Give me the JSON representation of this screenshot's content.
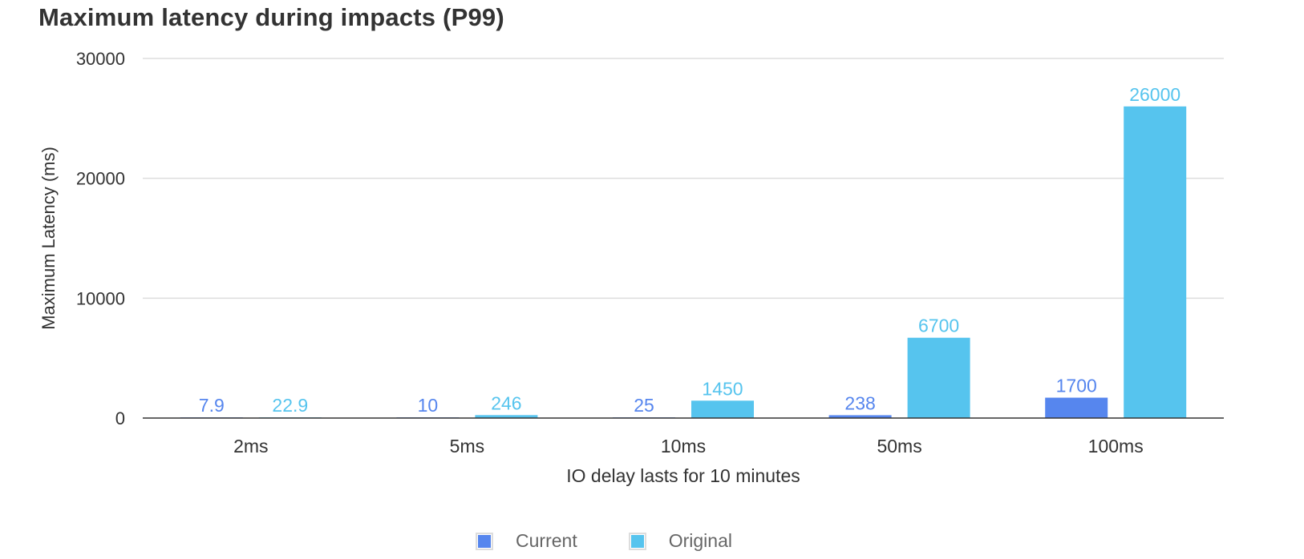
{
  "chart_data": {
    "type": "bar",
    "title": "Maximum latency during impacts (P99)",
    "xlabel": "IO delay lasts for 10 minutes",
    "ylabel": "Maximum Latency (ms)",
    "ylim": [
      0,
      30000
    ],
    "yticks": [
      "0",
      "10000",
      "20000",
      "30000"
    ],
    "yticks_values": [
      0,
      10000,
      20000,
      30000
    ],
    "categories": [
      "2ms",
      "5ms",
      "10ms",
      "50ms",
      "100ms"
    ],
    "series": [
      {
        "name": "Current",
        "color": "#5686EE",
        "values": [
          7.9,
          10,
          25,
          238,
          1700
        ],
        "labels": [
          "7.9",
          "10",
          "25",
          "238",
          "1700"
        ]
      },
      {
        "name": "Original",
        "color": "#56C4EE",
        "values": [
          22.9,
          246,
          1450,
          6700,
          26000
        ],
        "labels": [
          "22.9",
          "246",
          "1450",
          "6700",
          "26000"
        ]
      }
    ],
    "grid": true,
    "legend": "bottom-center"
  }
}
